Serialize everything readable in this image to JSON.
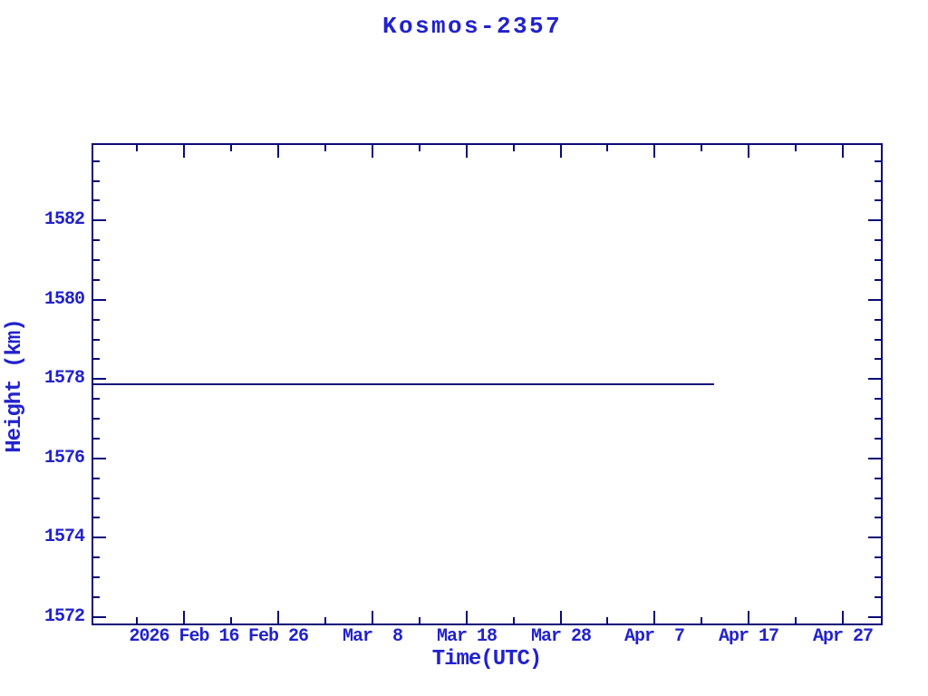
{
  "app": {
    "kind": "satellite-height-plot",
    "satellite_name": "Kosmos-2357"
  },
  "colors": {
    "background": "#FFFFFF",
    "text": "#2222CC",
    "axis": "#0A0A78",
    "series_line": "#15157B"
  },
  "chart_data": {
    "type": "line",
    "title": "Kosmos-2357",
    "xlabel": "Time(UTC)",
    "ylabel": "Height (km)",
    "grid": false,
    "legend": null,
    "x_axis": {
      "unit": "days relative to 2026-02-16",
      "range_days": [
        -9.7,
        74.2
      ],
      "range_dates": [
        "2026-02-06",
        "2026-05-01"
      ],
      "major_ticks": [
        {
          "day": 0,
          "label": "2026 Feb 16"
        },
        {
          "day": 10,
          "label": "Feb 26"
        },
        {
          "day": 20,
          "label": "Mar  8"
        },
        {
          "day": 30,
          "label": "Mar 18"
        },
        {
          "day": 40,
          "label": "Mar 28"
        },
        {
          "day": 50,
          "label": "Apr  7"
        },
        {
          "day": 60,
          "label": "Apr 17"
        },
        {
          "day": 70,
          "label": "Apr 27"
        }
      ],
      "minor_tick_days": [
        -5,
        5,
        15,
        25,
        35,
        45,
        55,
        65
      ]
    },
    "y_axis": {
      "unit": "km",
      "range_km": [
        1571.8,
        1583.9
      ],
      "major_ticks": [
        {
          "km": 1582,
          "label": "1582"
        },
        {
          "km": 1580,
          "label": "1580"
        },
        {
          "km": 1578,
          "label": "1578"
        },
        {
          "km": 1576,
          "label": "1576"
        },
        {
          "km": 1574,
          "label": "1574"
        },
        {
          "km": 1572,
          "label": "1572"
        }
      ],
      "minor_tick_km": [
        1583.5,
        1583,
        1582.5,
        1581.5,
        1581,
        1580.5,
        1579.5,
        1579,
        1578.5,
        1577.5,
        1577,
        1576.5,
        1575.5,
        1575,
        1574.5,
        1573.5,
        1573,
        1572.5
      ]
    },
    "series": [
      {
        "name": "orbit-height",
        "color": "#15157B",
        "constant_height_km": 1577.88,
        "points": [
          {
            "day": -9.7,
            "date": "2026-02-06",
            "km": 1577.88
          },
          {
            "day": 56.3,
            "date": "2026-04-13",
            "km": 1577.88
          }
        ]
      }
    ]
  }
}
